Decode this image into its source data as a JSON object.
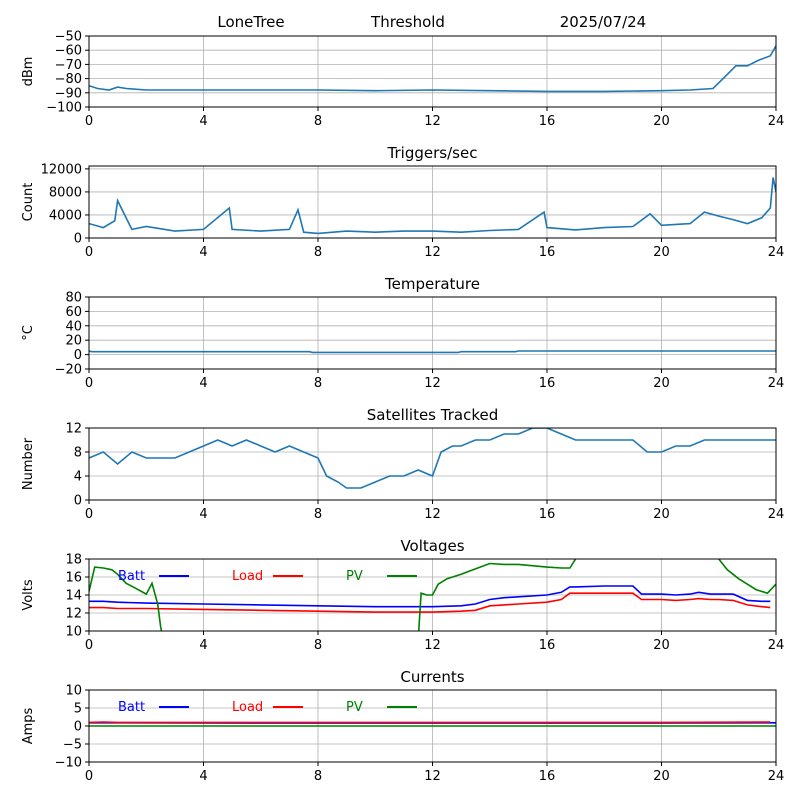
{
  "header": {
    "station": "LoneTree",
    "mode": "Threshold",
    "date": "2025/07/24"
  },
  "chart_data": [
    {
      "type": "line",
      "title": "",
      "xlabel": "",
      "ylabel": "dBm",
      "xlim": [
        0,
        24
      ],
      "ylim": [
        -100,
        -50
      ],
      "xticks": [
        0,
        4,
        8,
        12,
        16,
        20,
        24
      ],
      "yticks": [
        -100,
        -90,
        -80,
        -70,
        -60,
        -50
      ],
      "grid": true,
      "series": [
        {
          "color": "#1f77b4",
          "x": [
            0,
            0.3,
            0.7,
            1.0,
            1.3,
            2,
            4,
            6,
            8,
            10,
            12,
            14,
            16,
            18,
            20,
            21,
            21.8,
            22.2,
            22.6,
            23.0,
            23.4,
            23.8,
            24
          ],
          "y": [
            -85,
            -87,
            -88,
            -86,
            -87,
            -88,
            -88,
            -88,
            -88,
            -88.5,
            -88,
            -88.5,
            -89,
            -89,
            -88.5,
            -88,
            -87,
            -79,
            -71,
            -71,
            -67,
            -64,
            -57
          ]
        }
      ]
    },
    {
      "type": "line",
      "title": "Triggers/sec",
      "xlabel": "",
      "ylabel": "Count",
      "xlim": [
        0,
        24
      ],
      "ylim": [
        0,
        12500
      ],
      "xticks": [
        0,
        4,
        8,
        12,
        16,
        20,
        24
      ],
      "yticks": [
        0,
        4000,
        8000,
        12000
      ],
      "grid": true,
      "series": [
        {
          "color": "#1f77b4",
          "x": [
            0,
            0.5,
            0.9,
            1.0,
            1.5,
            2,
            3,
            4,
            4.9,
            5,
            6,
            7,
            7.3,
            7.5,
            8,
            9,
            10,
            11,
            12,
            13,
            14,
            15,
            15.9,
            16,
            17,
            18,
            19,
            19.6,
            20,
            21,
            21.5,
            22,
            22.5,
            23,
            23.5,
            23.8,
            23.9,
            24
          ],
          "y": [
            2500,
            1800,
            3000,
            6500,
            1500,
            2000,
            1200,
            1500,
            5200,
            1500,
            1200,
            1500,
            4900,
            1000,
            800,
            1200,
            1000,
            1200,
            1200,
            1000,
            1300,
            1500,
            4500,
            1800,
            1400,
            1800,
            2000,
            4200,
            2200,
            2500,
            4500,
            3800,
            3200,
            2500,
            3500,
            5200,
            10500,
            8000
          ]
        }
      ]
    },
    {
      "type": "line",
      "title": "Temperature",
      "xlabel": "",
      "ylabel": "°C",
      "xlim": [
        0,
        24
      ],
      "ylim": [
        -20,
        80
      ],
      "xticks": [
        0,
        4,
        8,
        12,
        16,
        20,
        24
      ],
      "yticks": [
        -20,
        0,
        20,
        40,
        60,
        80
      ],
      "grid": true,
      "series": [
        {
          "color": "#1f77b4",
          "x": [
            0,
            0.1,
            7.7,
            7.8,
            12.9,
            13,
            14.9,
            15,
            24
          ],
          "y": [
            5,
            4,
            4,
            3,
            3,
            4,
            4,
            5,
            5
          ]
        }
      ]
    },
    {
      "type": "line",
      "title": "Satellites Tracked",
      "xlabel": "",
      "ylabel": "Number",
      "xlim": [
        0,
        24
      ],
      "ylim": [
        0,
        12
      ],
      "xticks": [
        0,
        4,
        8,
        12,
        16,
        20,
        24
      ],
      "yticks": [
        0,
        4,
        8,
        12
      ],
      "grid": true,
      "series": [
        {
          "color": "#1f77b4",
          "x": [
            0,
            0.5,
            1,
            1.5,
            2,
            2.5,
            3,
            3.5,
            4,
            4.5,
            5,
            5.5,
            6,
            6.5,
            7,
            7.5,
            8,
            8.3,
            8.7,
            9,
            9.5,
            10,
            10.5,
            11,
            11.5,
            12,
            12.3,
            12.7,
            13,
            13.5,
            14,
            14.5,
            15,
            15.5,
            16,
            16.5,
            17,
            17.5,
            18,
            18.5,
            19,
            19.5,
            20,
            20.5,
            21,
            21.5,
            22,
            22.5,
            23,
            23.5,
            24
          ],
          "y": [
            7,
            8,
            6,
            8,
            7,
            7,
            7,
            8,
            9,
            10,
            9,
            10,
            9,
            8,
            9,
            8,
            7,
            4,
            3,
            2,
            2,
            3,
            4,
            4,
            5,
            4,
            8,
            9,
            9,
            10,
            10,
            11,
            11,
            12,
            12,
            11,
            10,
            10,
            10,
            10,
            10,
            8,
            8,
            9,
            9,
            10,
            10,
            10,
            10,
            10,
            10
          ]
        }
      ]
    },
    {
      "type": "line",
      "title": "Voltages",
      "xlabel": "",
      "ylabel": "Volts",
      "xlim": [
        0,
        24
      ],
      "ylim": [
        10,
        18
      ],
      "xticks": [
        0,
        4,
        8,
        12,
        16,
        20,
        24
      ],
      "yticks": [
        10,
        12,
        14,
        16,
        18
      ],
      "grid": true,
      "legend": "top",
      "series": [
        {
          "name": "Batt",
          "color": "#0000ff",
          "x": [
            0,
            0.5,
            1,
            2,
            4,
            6,
            8,
            10,
            12,
            13,
            13.5,
            14,
            14.5,
            15,
            16,
            16.5,
            16.8,
            17,
            18,
            19,
            19.3,
            20,
            20.5,
            21,
            21.3,
            21.7,
            22,
            22.5,
            23,
            23.5,
            23.8
          ],
          "y": [
            13.3,
            13.3,
            13.2,
            13.1,
            13.0,
            12.9,
            12.8,
            12.7,
            12.7,
            12.8,
            13.0,
            13.5,
            13.7,
            13.8,
            14.0,
            14.3,
            14.9,
            14.9,
            15.0,
            15.0,
            14.1,
            14.1,
            14.0,
            14.1,
            14.3,
            14.1,
            14.1,
            14.1,
            13.4,
            13.3,
            13.3
          ]
        },
        {
          "name": "Load",
          "color": "#ff0000",
          "x": [
            0,
            0.5,
            1,
            2,
            4,
            6,
            8,
            10,
            12,
            13,
            13.5,
            14,
            14.5,
            15,
            16,
            16.5,
            16.8,
            17,
            18,
            19,
            19.3,
            20,
            20.5,
            21,
            21.3,
            21.7,
            22,
            22.5,
            23,
            23.5,
            23.8
          ],
          "y": [
            12.6,
            12.6,
            12.5,
            12.5,
            12.4,
            12.3,
            12.2,
            12.1,
            12.1,
            12.2,
            12.3,
            12.8,
            12.9,
            13.0,
            13.2,
            13.5,
            14.2,
            14.2,
            14.2,
            14.2,
            13.5,
            13.5,
            13.4,
            13.5,
            13.6,
            13.5,
            13.5,
            13.4,
            12.9,
            12.7,
            12.6
          ]
        },
        {
          "name": "PV",
          "color": "#008000",
          "x": [
            0,
            0.2,
            0.5,
            0.8,
            1.0,
            1.3,
            1.6,
            2.0,
            2.2,
            2.4,
            2.5,
            2.6,
            11.5,
            11.6,
            11.8,
            12.0,
            12.2,
            12.5,
            13,
            13.5,
            14,
            14.5,
            15,
            16,
            16.5,
            16.8,
            17.0,
            17.2,
            21.8,
            22.0,
            22.3,
            22.7,
            23.0,
            23.3,
            23.7,
            24
          ],
          "y": [
            14.4,
            17.1,
            17.0,
            16.8,
            16.3,
            15.3,
            14.8,
            14.1,
            15.3,
            13.0,
            10.5,
            9.0,
            9.0,
            14.2,
            14.0,
            14.0,
            15.2,
            15.8,
            16.3,
            16.9,
            17.5,
            17.4,
            17.4,
            17.1,
            17.0,
            17.0,
            18.0,
            19.0,
            19.0,
            18.0,
            16.8,
            15.8,
            15.2,
            14.6,
            14.2,
            15.2
          ]
        }
      ]
    },
    {
      "type": "line",
      "title": "Currents",
      "xlabel": "",
      "ylabel": "Amps",
      "xlim": [
        0,
        24
      ],
      "ylim": [
        -10,
        10
      ],
      "xticks": [
        0,
        4,
        8,
        12,
        16,
        20,
        24
      ],
      "yticks": [
        -10,
        -5,
        0,
        5,
        10
      ],
      "grid": true,
      "legend": "top",
      "series": [
        {
          "name": "Batt",
          "color": "#0000ff",
          "x": [
            0,
            8,
            16,
            19,
            24
          ],
          "y": [
            0.9,
            0.8,
            0.8,
            0.8,
            0.9
          ]
        },
        {
          "name": "Load",
          "color": "#ff0000",
          "x": [
            0,
            0.5,
            1,
            4,
            8,
            12,
            16,
            20,
            23.8
          ],
          "y": [
            1.0,
            1.1,
            1.0,
            1.0,
            1.0,
            1.0,
            1.0,
            1.0,
            1.1
          ]
        },
        {
          "name": "PV",
          "color": "#008000",
          "x": [
            0,
            24
          ],
          "y": [
            0.0,
            0.0
          ]
        }
      ]
    }
  ]
}
